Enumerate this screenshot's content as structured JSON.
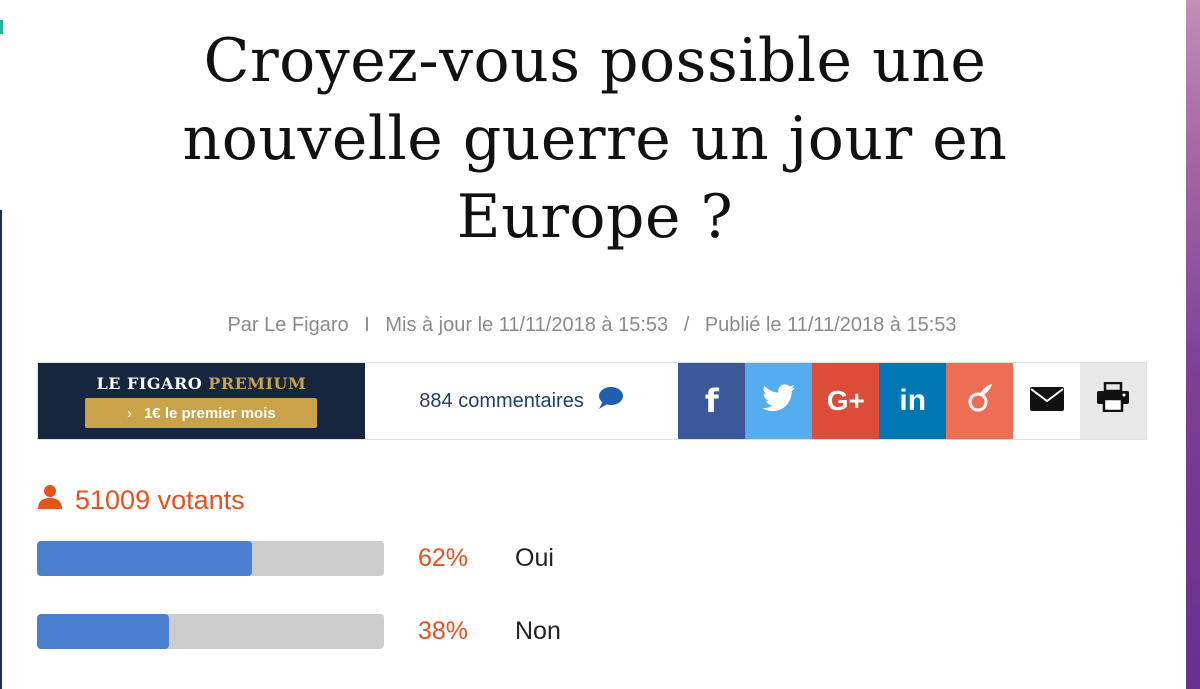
{
  "article": {
    "title": "Croyez-vous possible une nouvelle guerre un jour en Europe ?",
    "byline": {
      "par": "Par",
      "author": "Le Figaro",
      "separator1": "I",
      "updated": "Mis à jour le 11/11/2018 à 15:53",
      "separator2": "/",
      "published": "Publié le 11/11/2018 à 15:53"
    }
  },
  "toolbar": {
    "premium": {
      "logo_main": "LE FIGARO",
      "logo_accent": "PREMIUM",
      "cta_chevron": "›",
      "cta_label": "1€ le premier mois"
    },
    "comments": {
      "label": "884 commentaires",
      "icon": "speech-bubble-icon"
    },
    "share": [
      {
        "name": "facebook",
        "glyph": "f",
        "color": "#3b5998"
      },
      {
        "name": "twitter",
        "icon": "twitter-bird-icon",
        "color": "#55acee"
      },
      {
        "name": "google-plus",
        "glyph": "G+",
        "color": "#dd4b39"
      },
      {
        "name": "linkedin",
        "glyph": "in",
        "color": "#0077b5"
      },
      {
        "name": "viadeo",
        "icon": "viadeo-icon",
        "color": "#ee6e55"
      },
      {
        "name": "email",
        "icon": "envelope-icon",
        "color": "#ffffff"
      },
      {
        "name": "print",
        "icon": "printer-icon",
        "color": "#e8e8e8"
      }
    ]
  },
  "poll": {
    "voters_label": "51009 votants",
    "accent_color": "#e8501e",
    "bar_color": "#4b7fd0",
    "options": [
      {
        "percent_label": "62%",
        "percent": 62,
        "label": "Oui"
      },
      {
        "percent_label": "38%",
        "percent": 38,
        "label": "Non"
      }
    ]
  }
}
